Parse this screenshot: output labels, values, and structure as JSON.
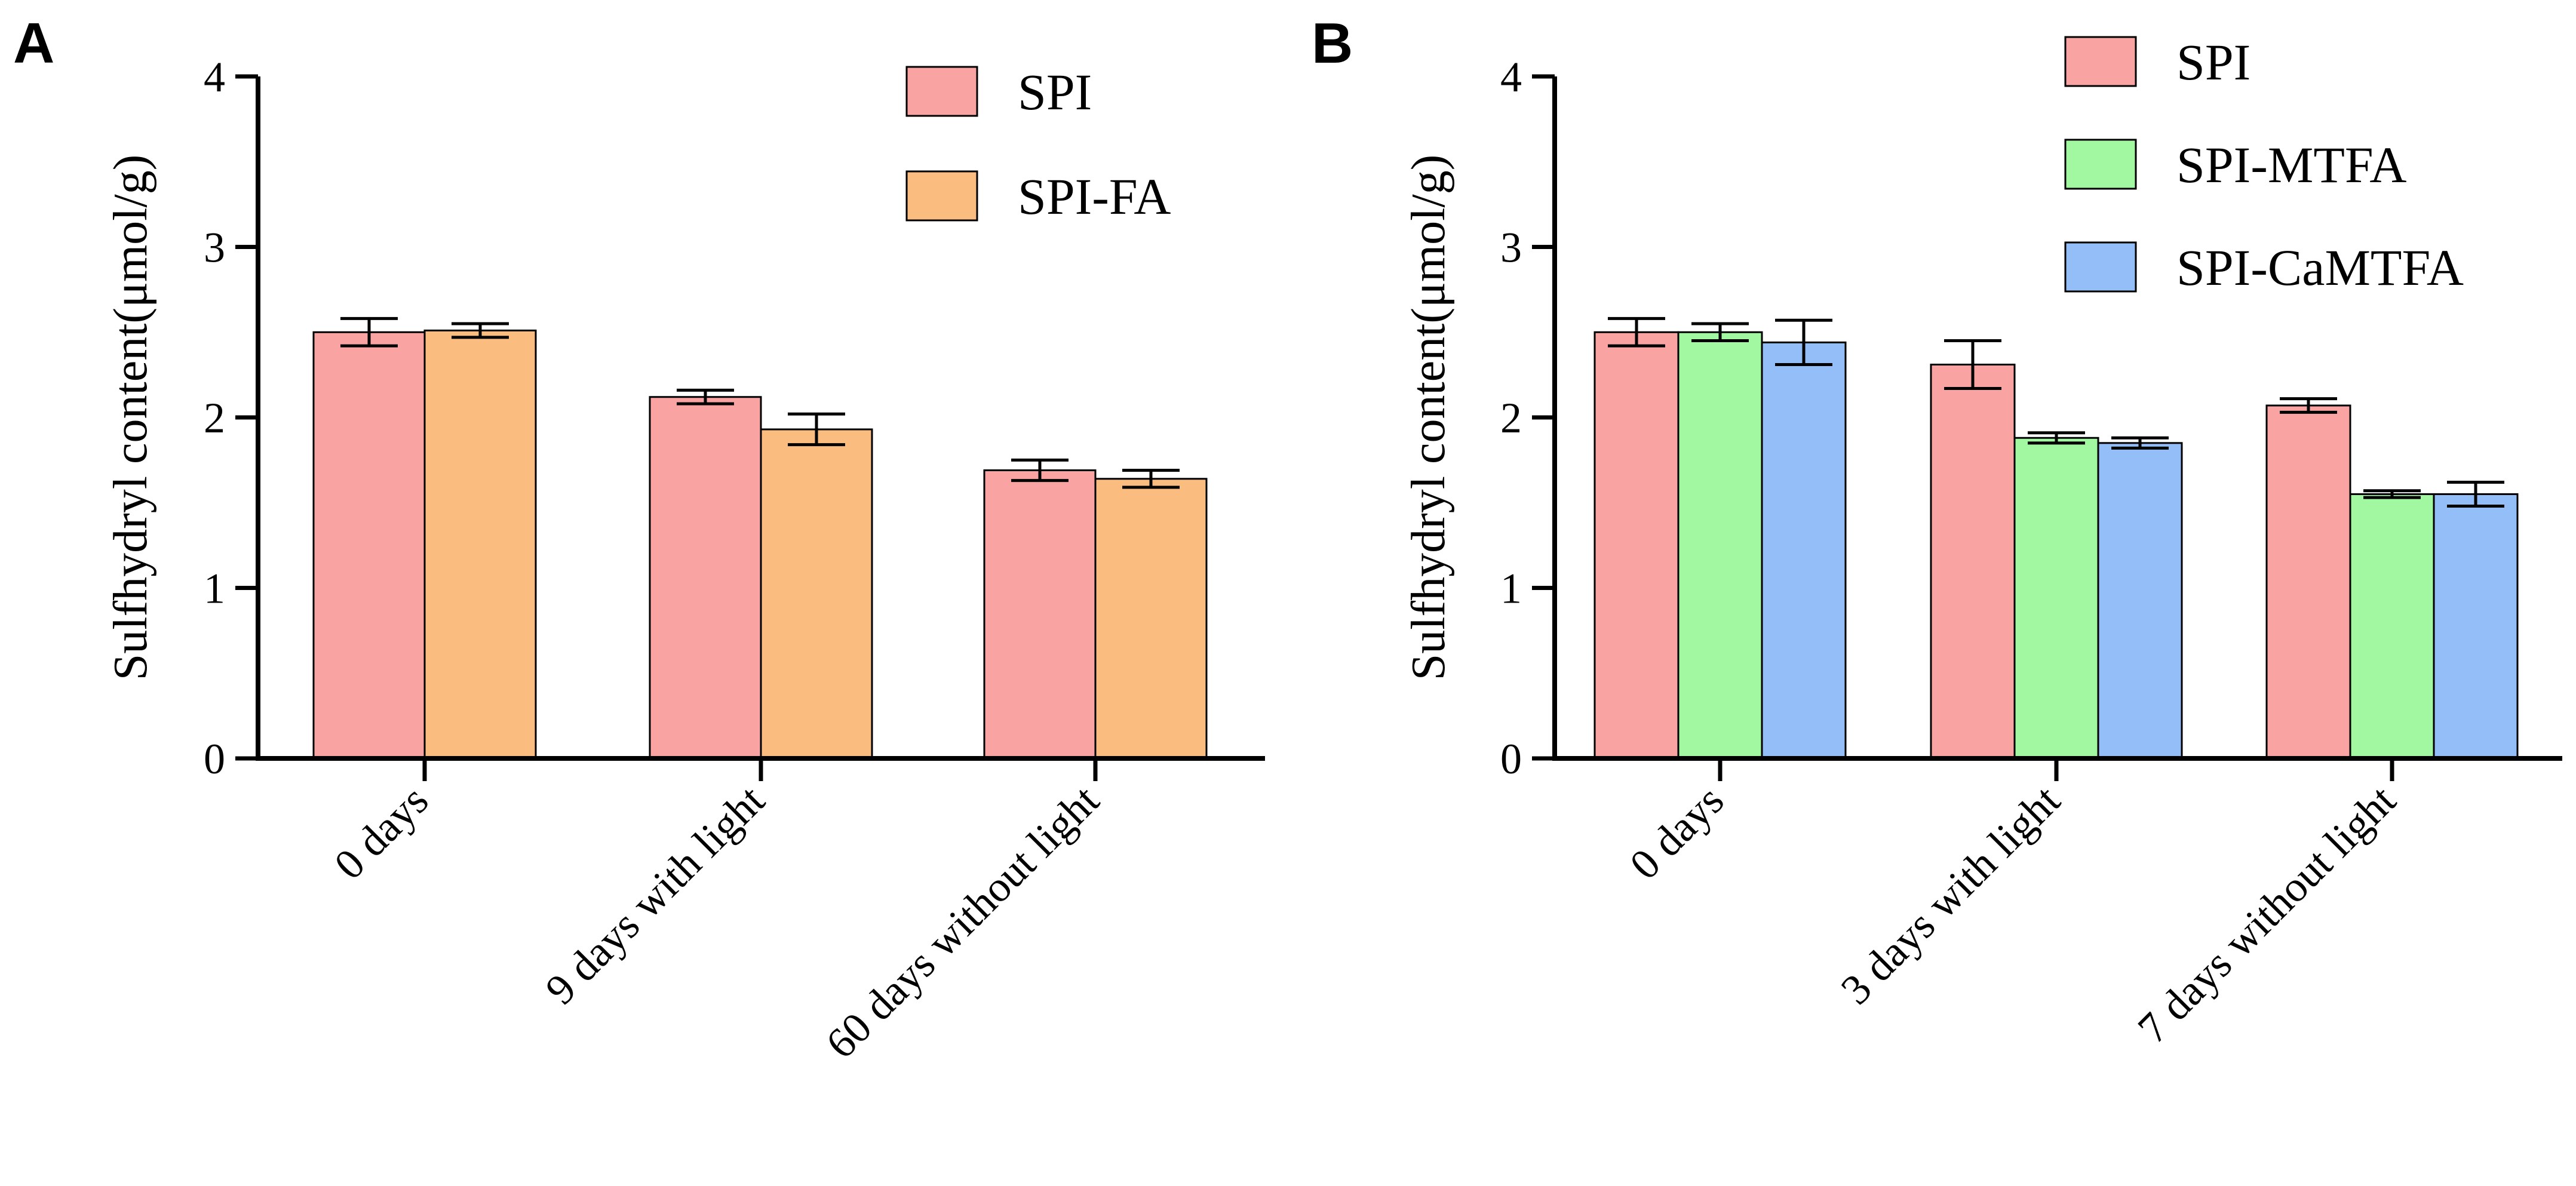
{
  "chart_data": [
    {
      "panel": "A",
      "type": "bar",
      "ylabel": "Sulfhydryl content(μmol/g)",
      "ylim": [
        0,
        4
      ],
      "yticks": [
        0,
        1,
        2,
        3,
        4
      ],
      "categories": [
        "0 days",
        "9 days with light",
        "60 days without light"
      ],
      "series": [
        {
          "name": "SPI",
          "color": "#F9A3A3",
          "values": [
            2.5,
            2.12,
            1.69
          ],
          "errors": [
            0.08,
            0.04,
            0.06
          ]
        },
        {
          "name": "SPI-FA",
          "color": "#FBBD7F",
          "values": [
            2.51,
            1.93,
            1.64
          ],
          "errors": [
            0.04,
            0.09,
            0.05
          ]
        }
      ],
      "legend": "top-right"
    },
    {
      "panel": "B",
      "type": "bar",
      "ylabel": "Sulfhydryl content(μmol/g)",
      "ylim": [
        0,
        4
      ],
      "yticks": [
        0,
        1,
        2,
        3,
        4
      ],
      "categories": [
        "0 days",
        "3 days with light",
        "7 days without light"
      ],
      "series": [
        {
          "name": "SPI",
          "color": "#F9A3A3",
          "values": [
            2.5,
            2.31,
            2.07
          ],
          "errors": [
            0.08,
            0.14,
            0.04
          ]
        },
        {
          "name": "SPI-MTFA",
          "color": "#A2F8A0",
          "values": [
            2.5,
            1.88,
            1.55
          ],
          "errors": [
            0.05,
            0.03,
            0.02
          ]
        },
        {
          "name": "SPI-CaMTFA",
          "color": "#94BEF8",
          "values": [
            2.44,
            1.85,
            1.55
          ],
          "errors": [
            0.13,
            0.03,
            0.07
          ]
        }
      ],
      "legend": "top-right"
    }
  ]
}
